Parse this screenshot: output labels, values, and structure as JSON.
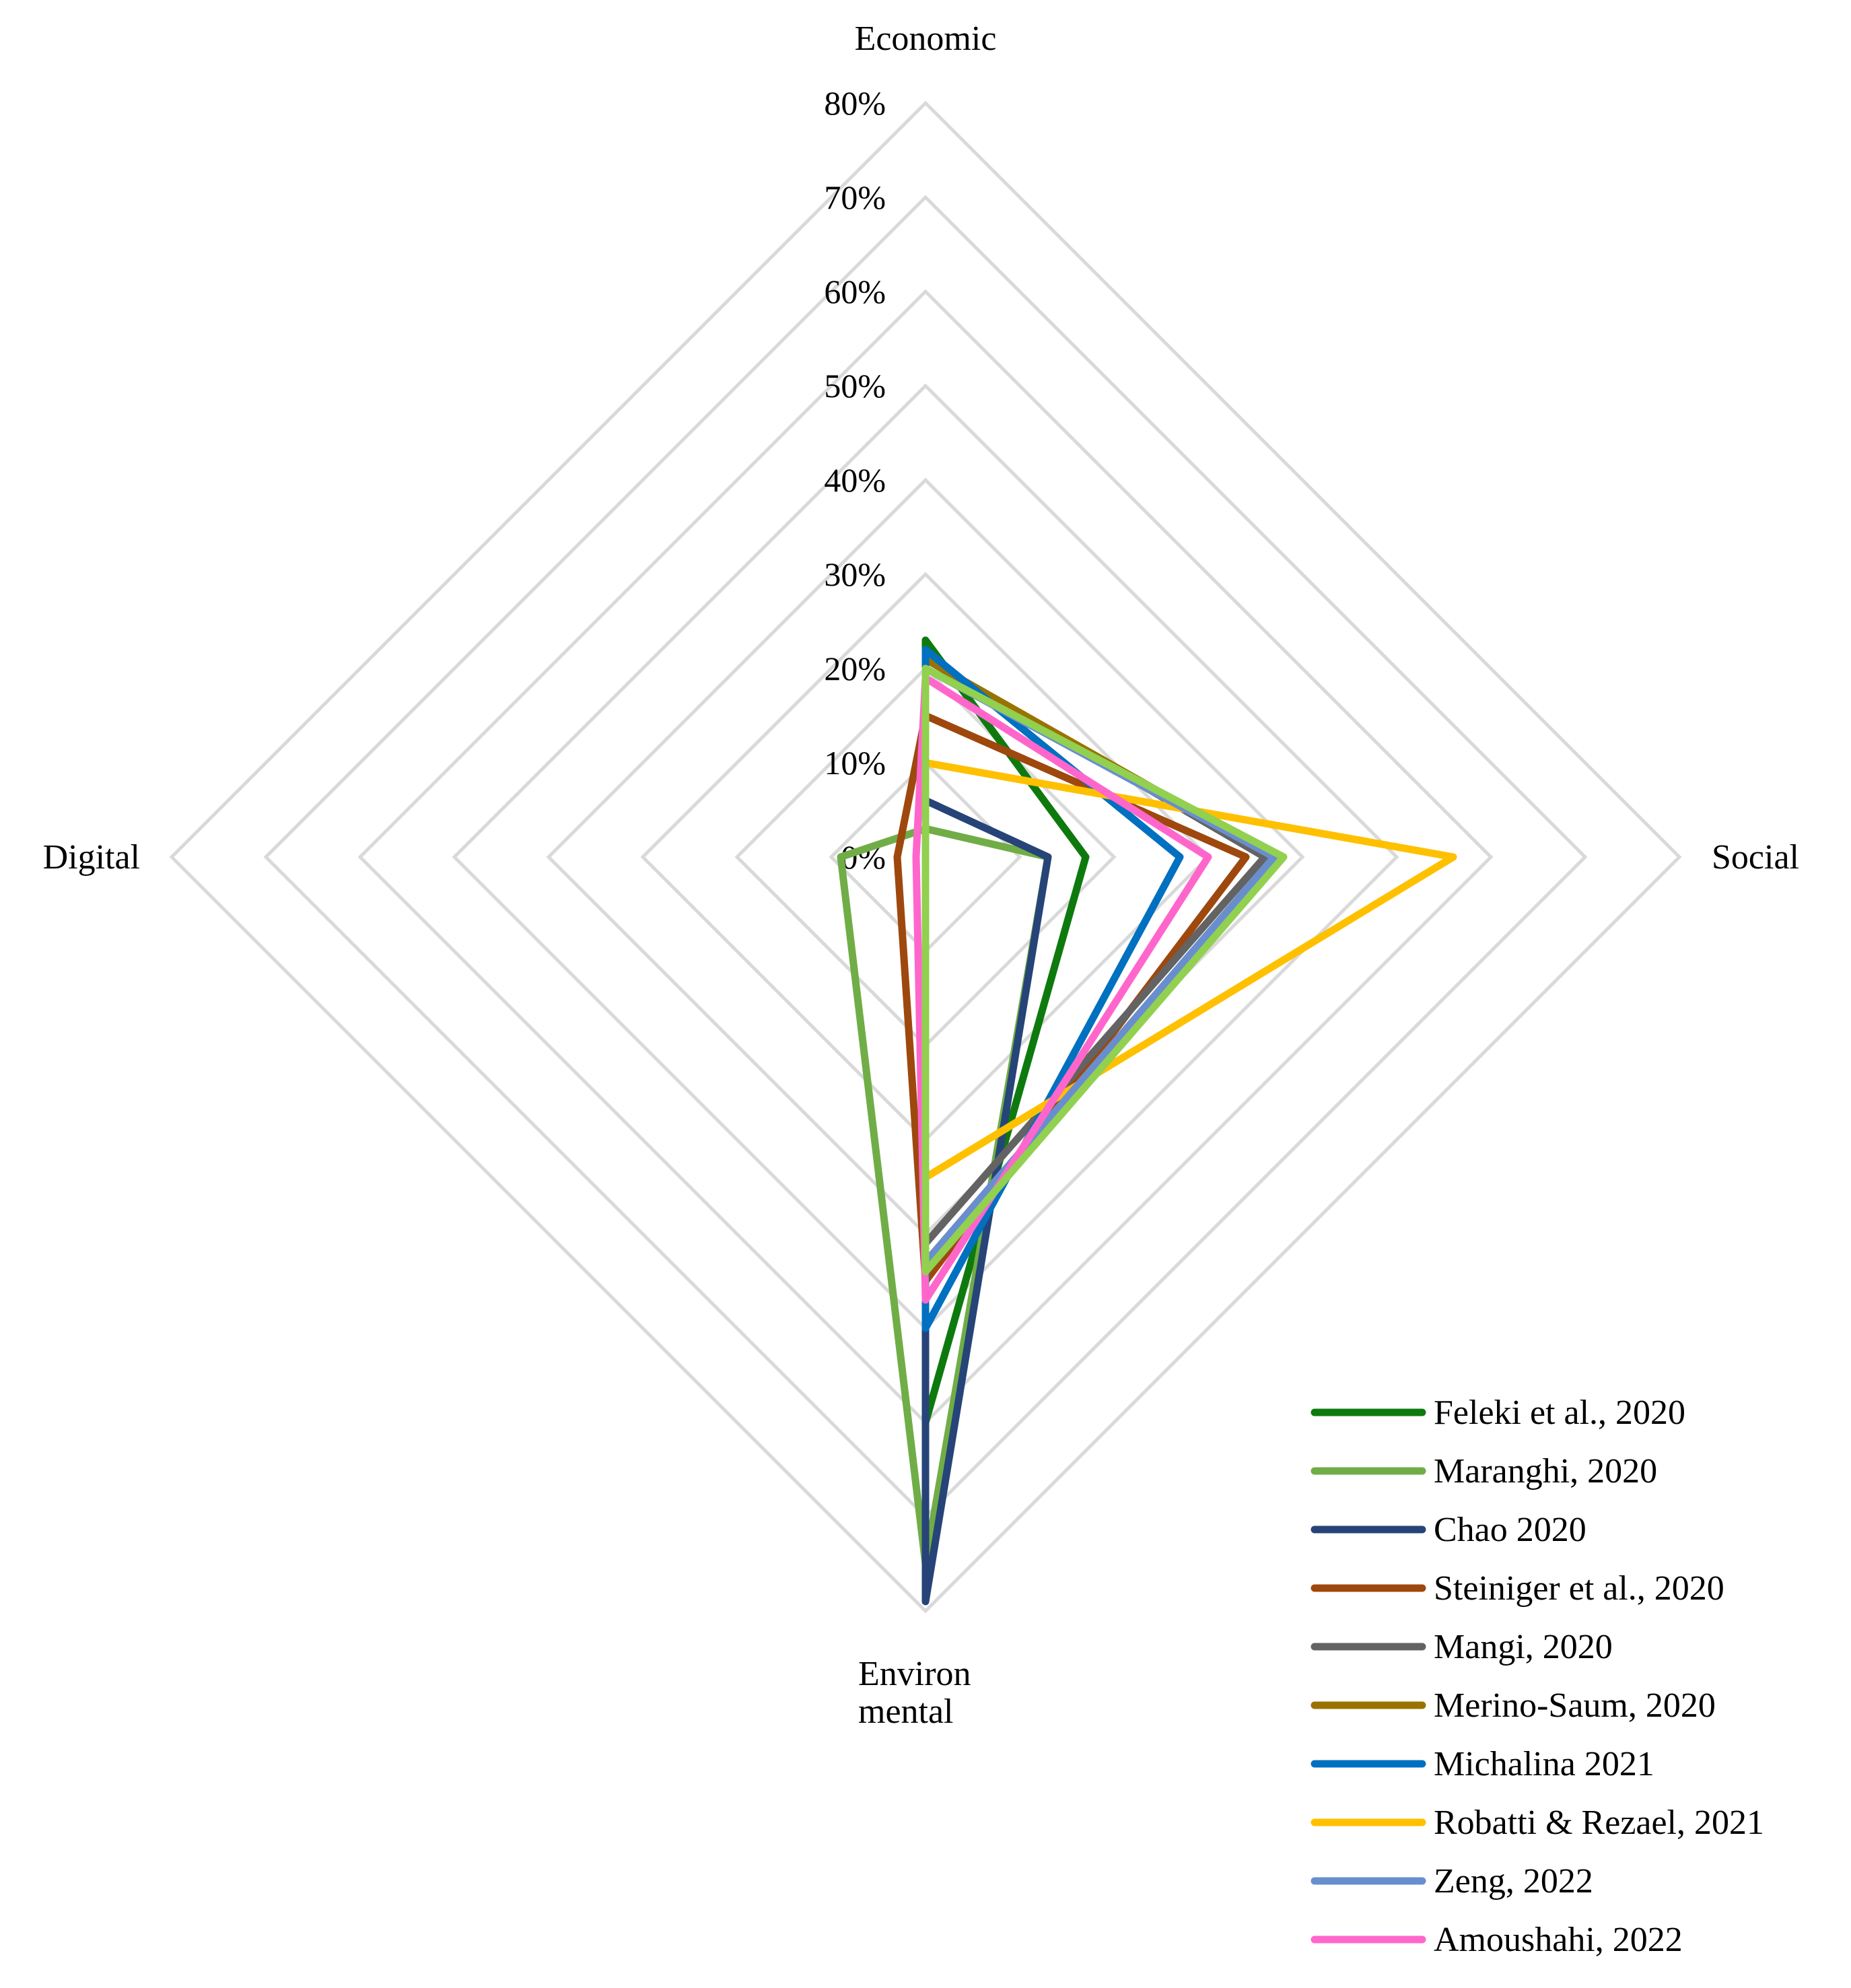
{
  "chart_data": {
    "type": "radar",
    "axes": [
      "Economic",
      "Social",
      "Environ mental",
      "Digital"
    ],
    "axis_label_lines": {
      "Economic": [
        "Economic"
      ],
      "Social": [
        "Social"
      ],
      "Environ mental": [
        "Environ",
        "mental"
      ],
      "Digital": [
        "Digital"
      ]
    },
    "rlim": [
      0,
      80
    ],
    "ticks": [
      0,
      10,
      20,
      30,
      40,
      50,
      60,
      70,
      80
    ],
    "tick_labels": [
      "0%",
      "10%",
      "20%",
      "30%",
      "40%",
      "50%",
      "60%",
      "70%",
      "80%"
    ],
    "legend_position": "bottom-right",
    "series": [
      {
        "name": "Feleki et al., 2020",
        "color": "#0e7a0e",
        "values": [
          23,
          17,
          60,
          0
        ]
      },
      {
        "name": "Maranghi, 2020",
        "color": "#70ad47",
        "values": [
          3,
          13,
          75,
          9
        ]
      },
      {
        "name": "Chao 2020",
        "color": "#264478",
        "values": [
          6,
          13,
          79,
          0
        ]
      },
      {
        "name": "Steiniger et al., 2020",
        "color": "#9e480e",
        "values": [
          15,
          34,
          45,
          3
        ]
      },
      {
        "name": "Mangi, 2020",
        "color": "#636363",
        "values": [
          21,
          36,
          41,
          0
        ]
      },
      {
        "name": "Merino-Saum, 2020",
        "color": "#997300",
        "values": [
          21,
          37,
          43,
          0
        ]
      },
      {
        "name": "Michalina 2021",
        "color": "#0070c0",
        "values": [
          22,
          27,
          50,
          0
        ]
      },
      {
        "name": "Robatti & Rezael, 2021",
        "color": "#ffc000",
        "values": [
          10,
          56,
          34,
          0
        ]
      },
      {
        "name": "Zeng, 2022",
        "color": "#698ed0",
        "values": [
          20,
          37,
          43,
          0
        ]
      },
      {
        "name": "Amoushahi, 2022",
        "color": "#ff66cc",
        "values": [
          19,
          30,
          47,
          1
        ]
      },
      {
        "name": "",
        "color": "#92d050",
        "values": [
          20,
          38,
          44,
          0
        ]
      }
    ]
  }
}
